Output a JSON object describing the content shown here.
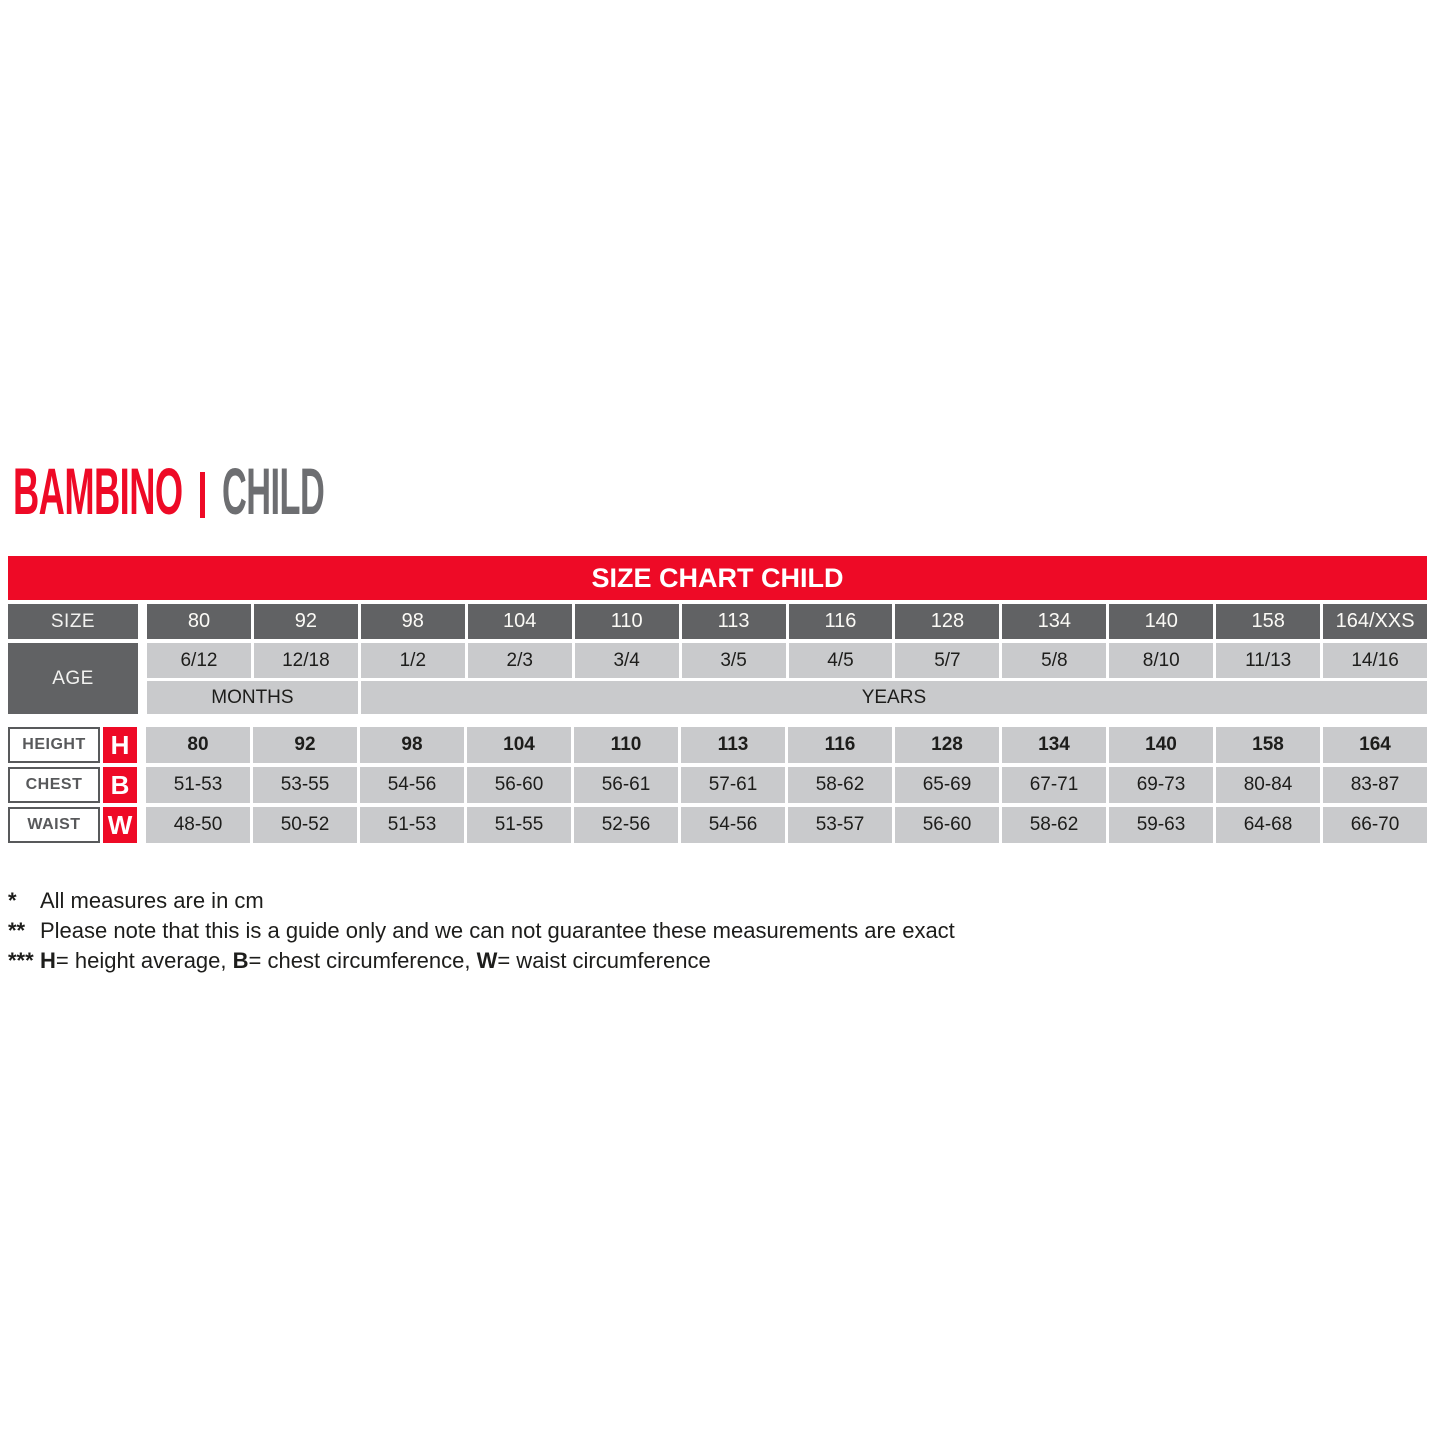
{
  "title": {
    "brand": "BAMBINO",
    "translation": "CHILD"
  },
  "banner": {
    "title": "SIZE CHART CHILD"
  },
  "size_chart": {
    "size_row_label": "SIZE",
    "sizes": [
      "80",
      "92",
      "98",
      "104",
      "110",
      "113",
      "116",
      "128",
      "134",
      "140",
      "158",
      "164/XXS"
    ],
    "age_row_label": "AGE",
    "ages": [
      "6/12",
      "12/18",
      "1/2",
      "2/3",
      "3/4",
      "3/5",
      "4/5",
      "5/7",
      "5/8",
      "8/10",
      "11/13",
      "14/16"
    ],
    "age_units": {
      "months_label": "MONTHS",
      "years_label": "YEARS"
    },
    "measure_rows": [
      {
        "label": "HEIGHT",
        "letter": "H",
        "values": [
          "80",
          "92",
          "98",
          "104",
          "110",
          "113",
          "116",
          "128",
          "134",
          "140",
          "158",
          "164"
        ]
      },
      {
        "label": "CHEST",
        "letter": "B",
        "values": [
          "51-53",
          "53-55",
          "54-56",
          "56-60",
          "56-61",
          "57-61",
          "58-62",
          "65-69",
          "67-71",
          "69-73",
          "80-84",
          "83-87"
        ]
      },
      {
        "label": "WAIST",
        "letter": "W",
        "values": [
          "48-50",
          "50-52",
          "51-53",
          "51-55",
          "52-56",
          "54-56",
          "53-57",
          "56-60",
          "58-62",
          "59-63",
          "64-68",
          "66-70"
        ]
      }
    ]
  },
  "footnotes": {
    "note1": {
      "marker": "*",
      "text": "All measures are in cm"
    },
    "note2": {
      "marker": "**",
      "text": "Please note that this is a guide only and we can not guarantee these measurements are exact"
    },
    "note3": {
      "marker": "***",
      "h_key": "H",
      "h_text": "= height average, ",
      "b_key": "B",
      "b_text": "= chest circumference, ",
      "w_key": "W",
      "w_text": "= waist circumference"
    }
  },
  "colors": {
    "accent_red": "#ee0a26",
    "header_dark_gray": "#616264",
    "cell_light_gray": "#c9cacc",
    "label_border_gray": "#58595b",
    "title_gray": "#6d6e71",
    "text": "#1d1d1b"
  }
}
